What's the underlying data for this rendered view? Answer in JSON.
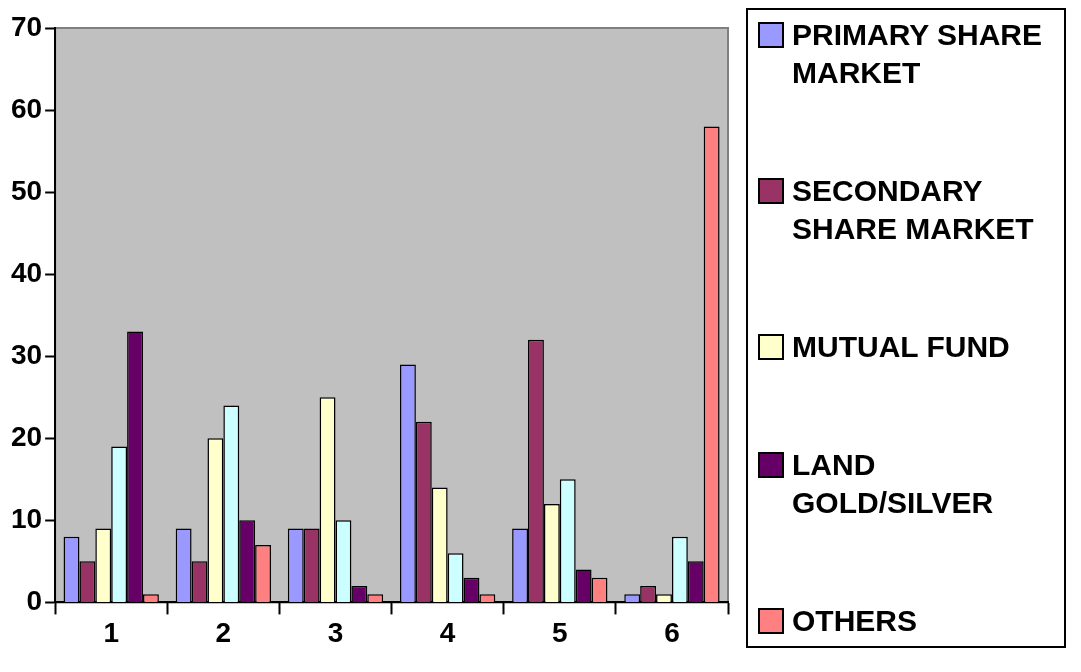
{
  "chart_data": {
    "type": "bar",
    "categories": [
      "1",
      "2",
      "3",
      "4",
      "5",
      "6"
    ],
    "series": [
      {
        "name": "PRIMARY SHARE MARKET",
        "color": "#9999ff",
        "values": [
          8,
          9,
          9,
          29,
          9,
          1
        ]
      },
      {
        "name": "SECONDARY SHARE MARKET",
        "color": "#993366",
        "values": [
          5,
          5,
          9,
          22,
          32,
          2
        ]
      },
      {
        "name": "MUTUAL FUND",
        "color": "#ffffcc",
        "values": [
          9,
          20,
          25,
          14,
          12,
          1
        ]
      },
      {
        "color": "#ccffff",
        "values": [
          19,
          24,
          10,
          6,
          15,
          8
        ]
      },
      {
        "name": "LAND GOLD/SILVER",
        "color": "#660066",
        "values": [
          33,
          10,
          2,
          3,
          4,
          5
        ]
      },
      {
        "name": "OTHERS",
        "color": "#ff8080",
        "values": [
          1,
          7,
          1,
          1,
          3,
          58
        ]
      }
    ],
    "ylim": [
      0,
      70
    ],
    "yticks": [
      0,
      10,
      20,
      30,
      40,
      50,
      60,
      70
    ],
    "grid": false,
    "legend": "right"
  }
}
